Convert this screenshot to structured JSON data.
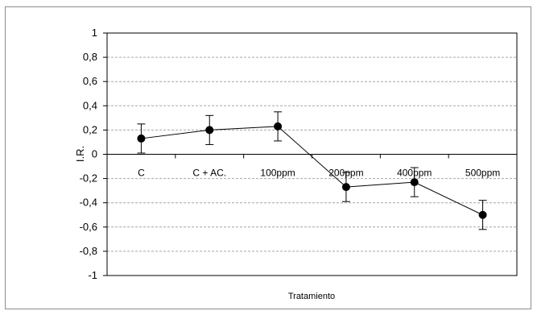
{
  "chart_data": {
    "type": "line",
    "title": "",
    "xlabel": "Tratamiento",
    "ylabel": "I.R.",
    "categories": [
      "C",
      "C + AC.",
      "100ppm",
      "200ppm",
      "400ppm",
      "500ppm"
    ],
    "series": [
      {
        "values": [
          0.13,
          0.2,
          0.23,
          -0.27,
          -0.23,
          -0.5
        ],
        "error": [
          0.12,
          0.12,
          0.12,
          0.12,
          0.12,
          0.12
        ]
      }
    ],
    "ylim": [
      -1,
      1
    ],
    "yticks": [
      1,
      0.8,
      0.6,
      0.4,
      0.2,
      0,
      -0.2,
      -0.4,
      -0.6,
      -0.8,
      -1
    ],
    "ytick_labels": [
      "1",
      "0,8",
      "0,6",
      "0,4",
      "0,2",
      "0",
      "-0,2",
      "-0,4",
      "-0,6",
      "-0,8",
      "-1"
    ],
    "grid": true,
    "colors": {
      "line": "#000000",
      "marker": "#000000",
      "grid": "#a6a6a6",
      "errorbar": "#000000"
    }
  }
}
